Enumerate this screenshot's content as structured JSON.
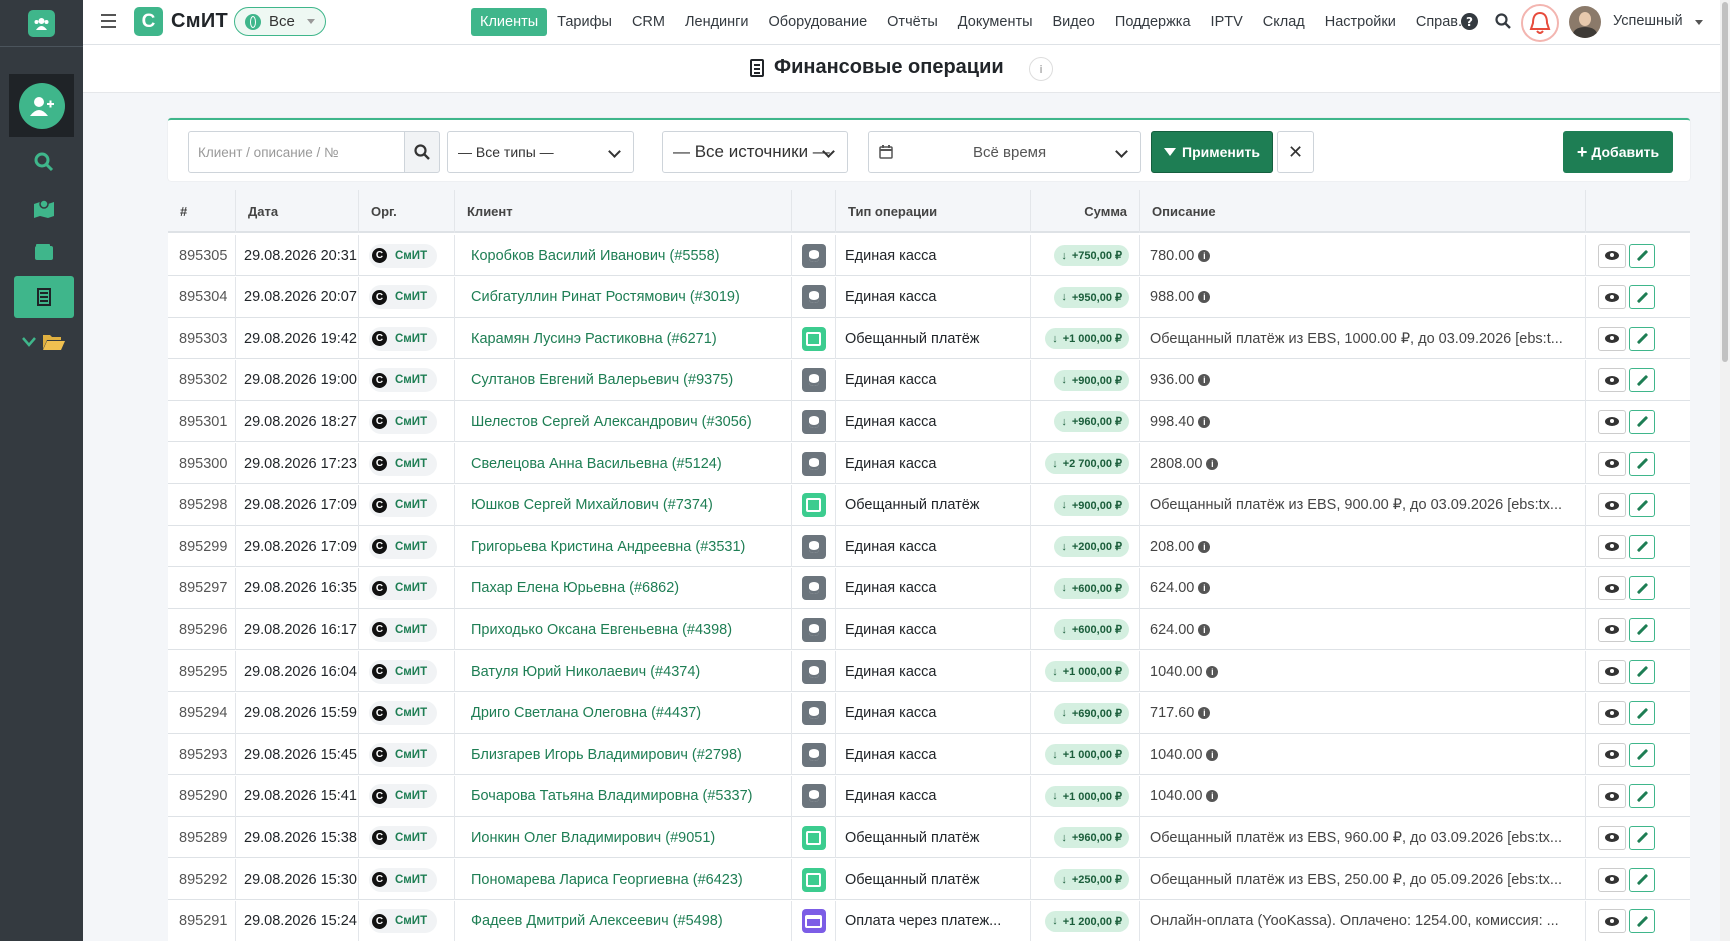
{
  "app": {
    "logo_letter": "С",
    "brand": "СмИТ",
    "org_selector": "Все"
  },
  "nav": [
    {
      "label": "Клиенты",
      "active": true
    },
    {
      "label": "Тарифы"
    },
    {
      "label": "CRM"
    },
    {
      "label": "Лендинги"
    },
    {
      "label": "Оборудование"
    },
    {
      "label": "Отчёты"
    },
    {
      "label": "Документы"
    },
    {
      "label": "Видео"
    },
    {
      "label": "Поддержка"
    },
    {
      "label": "IPTV"
    },
    {
      "label": "Склад"
    },
    {
      "label": "Настройки"
    },
    {
      "label": "Справ."
    }
  ],
  "user": {
    "name": "Успешный"
  },
  "page": {
    "title": "Финансовые операции",
    "info": "i"
  },
  "filters": {
    "search_placeholder": "Клиент / описание / №",
    "type": "— Все типы —",
    "source": "— Все источники —",
    "period": "Всё время",
    "apply": "Применить",
    "reset": "✕",
    "add": "Добавить"
  },
  "table": {
    "columns": [
      "#",
      "Дата",
      "Орг.",
      "Клиент",
      "",
      "Тип операции",
      "Сумма",
      "Описание"
    ],
    "rows": [
      {
        "id": "895305",
        "date": "29.08.2026 20:31",
        "org": "СмИТ",
        "client": "Коробков Василий Иванович (#5558)",
        "type_icon": "cash",
        "type": "Единая касса",
        "amount": "+750,00 ₽",
        "desc": "780.00",
        "desc_info": true
      },
      {
        "id": "895304",
        "date": "29.08.2026 20:07",
        "org": "СмИТ",
        "client": "Сибгатуллин Ринат Ростямович (#3019)",
        "type_icon": "cash",
        "type": "Единая касса",
        "amount": "+950,00 ₽",
        "desc": "988.00",
        "desc_info": true
      },
      {
        "id": "895303",
        "date": "29.08.2026 19:42",
        "org": "СмИТ",
        "client": "Карамян Лусинэ Растиковна (#6271)",
        "type_icon": "promise",
        "type": "Обещанный платёж",
        "amount": "+1 000,00 ₽",
        "desc": "Обещанный платёж из EBS, 1000.00 ₽, до 03.09.2026 [ebs:t...",
        "desc_info": false
      },
      {
        "id": "895302",
        "date": "29.08.2026 19:00",
        "org": "СмИТ",
        "client": "Султанов Евгений Валерьевич (#9375)",
        "type_icon": "cash",
        "type": "Единая касса",
        "amount": "+900,00 ₽",
        "desc": "936.00",
        "desc_info": true
      },
      {
        "id": "895301",
        "date": "29.08.2026 18:27",
        "org": "СмИТ",
        "client": "Шелестов Сергей Александрович (#3056)",
        "type_icon": "cash",
        "type": "Единая касса",
        "amount": "+960,00 ₽",
        "desc": "998.40",
        "desc_info": true
      },
      {
        "id": "895300",
        "date": "29.08.2026 17:23",
        "org": "СмИТ",
        "client": "Свелецова Анна Васильевна (#5124)",
        "type_icon": "cash",
        "type": "Единая касса",
        "amount": "+2 700,00 ₽",
        "desc": "2808.00",
        "desc_info": true
      },
      {
        "id": "895298",
        "date": "29.08.2026 17:09",
        "org": "СмИТ",
        "client": "Юшков Сергей Михайлович (#7374)",
        "type_icon": "promise",
        "type": "Обещанный платёж",
        "amount": "+900,00 ₽",
        "desc": "Обещанный платёж из EBS, 900.00 ₽, до 03.09.2026 [ebs:tx...",
        "desc_info": false
      },
      {
        "id": "895299",
        "date": "29.08.2026 17:09",
        "org": "СмИТ",
        "client": "Григорьева Кристина Андреевна (#3531)",
        "type_icon": "cash",
        "type": "Единая касса",
        "amount": "+200,00 ₽",
        "desc": "208.00",
        "desc_info": true
      },
      {
        "id": "895297",
        "date": "29.08.2026 16:35",
        "org": "СмИТ",
        "client": "Пахар Елена Юрьевна (#6862)",
        "type_icon": "cash",
        "type": "Единая касса",
        "amount": "+600,00 ₽",
        "desc": "624.00",
        "desc_info": true
      },
      {
        "id": "895296",
        "date": "29.08.2026 16:17",
        "org": "СмИТ",
        "client": "Приходько Оксана Евгеньевна (#4398)",
        "type_icon": "cash",
        "type": "Единая касса",
        "amount": "+600,00 ₽",
        "desc": "624.00",
        "desc_info": true
      },
      {
        "id": "895295",
        "date": "29.08.2026 16:04",
        "org": "СмИТ",
        "client": "Ватуля Юрий Николаевич (#4374)",
        "type_icon": "cash",
        "type": "Единая касса",
        "amount": "+1 000,00 ₽",
        "desc": "1040.00",
        "desc_info": true
      },
      {
        "id": "895294",
        "date": "29.08.2026 15:59",
        "org": "СмИТ",
        "client": "Дриго Светлана Олеговна (#4437)",
        "type_icon": "cash",
        "type": "Единая касса",
        "amount": "+690,00 ₽",
        "desc": "717.60",
        "desc_info": true
      },
      {
        "id": "895293",
        "date": "29.08.2026 15:45",
        "org": "СмИТ",
        "client": "Близгарев Игорь Владимирович (#2798)",
        "type_icon": "cash",
        "type": "Единая касса",
        "amount": "+1 000,00 ₽",
        "desc": "1040.00",
        "desc_info": true
      },
      {
        "id": "895290",
        "date": "29.08.2026 15:41",
        "org": "СмИТ",
        "client": "Бочарова Татьяна Владимировна (#5337)",
        "type_icon": "cash",
        "type": "Единая касса",
        "amount": "+1 000,00 ₽",
        "desc": "1040.00",
        "desc_info": true
      },
      {
        "id": "895289",
        "date": "29.08.2026 15:38",
        "org": "СмИТ",
        "client": "Ионкин Олег Владимирович (#9051)",
        "type_icon": "promise",
        "type": "Обещанный платёж",
        "amount": "+960,00 ₽",
        "desc": "Обещанный платёж из EBS, 960.00 ₽, до 03.09.2026 [ebs:tx...",
        "desc_info": false
      },
      {
        "id": "895292",
        "date": "29.08.2026 15:30",
        "org": "СмИТ",
        "client": "Пономарева Лариса Георгиевна (#6423)",
        "type_icon": "promise",
        "type": "Обещанный платёж",
        "amount": "+250,00 ₽",
        "desc": "Обещанный платёж из EBS, 250.00 ₽, до 05.09.2026 [ebs:tx...",
        "desc_info": false
      },
      {
        "id": "895291",
        "date": "29.08.2026 15:24",
        "org": "СмИТ",
        "client": "Фадеев Дмитрий Алексеевич (#5498)",
        "type_icon": "pay",
        "type": "Оплата через платеж...",
        "amount": "+1 200,00 ₽",
        "desc": "Онлайн-оплата (YooKassa). Оплачено: 1254.00, комиссия: ...",
        "desc_info": false
      }
    ]
  },
  "colors": {
    "accent": "#3fb68b",
    "accent_dark": "#1e7e54",
    "sidebar": "#343a40"
  }
}
